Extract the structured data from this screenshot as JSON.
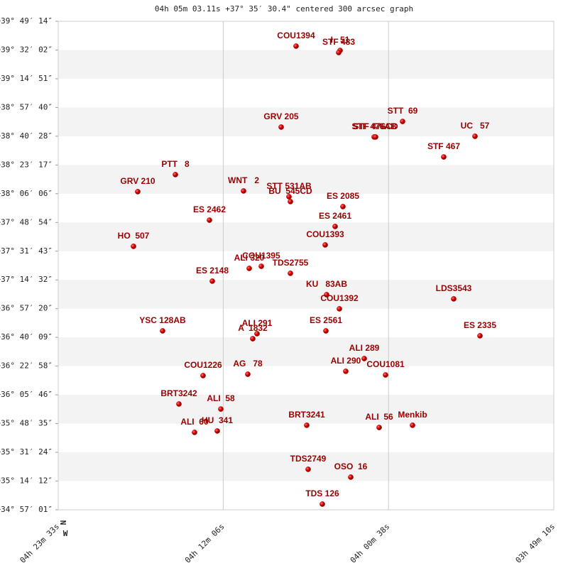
{
  "chart_data": {
    "type": "scatter",
    "title": "04h 05m 03.11s +37° 35′ 30.4\" centered 300 arcsec graph",
    "north_label": "N",
    "west_label": "W",
    "color": "#cc0000",
    "label_color": "#990000",
    "grid": true,
    "xlim": [
      263.55,
      229.1667
    ],
    "xticks": [
      {
        "value": 263.55,
        "label": "04h 23m 33s"
      },
      {
        "value": 252.1,
        "label": "04h 12m 06s"
      },
      {
        "value": 240.6333,
        "label": "04h 00m 38s"
      },
      {
        "value": 229.1667,
        "label": "03h 49m 10s"
      }
    ],
    "ylim": [
      34.95028,
      39.82056
    ],
    "yticks": [
      {
        "value": 39.82056,
        "label": "+39° 49′ 14″"
      },
      {
        "value": 39.53389,
        "label": "+39° 32′ 02″"
      },
      {
        "value": 39.2475,
        "label": "+39° 14′ 51″"
      },
      {
        "value": 38.96111,
        "label": "+38° 57′ 40″"
      },
      {
        "value": 38.67444,
        "label": "+38° 40′ 28″"
      },
      {
        "value": 38.38806,
        "label": "+38° 23′ 17″"
      },
      {
        "value": 38.10167,
        "label": "+38° 06′ 06″"
      },
      {
        "value": 37.815,
        "label": "+37° 48′ 54″"
      },
      {
        "value": 37.52861,
        "label": "+37° 31′ 43″"
      },
      {
        "value": 37.24222,
        "label": "+37° 14′ 32″"
      },
      {
        "value": 36.95556,
        "label": "+36° 57′ 20″"
      },
      {
        "value": 36.66917,
        "label": "+36° 40′ 09″"
      },
      {
        "value": 36.38278,
        "label": "+36° 22′ 58″"
      },
      {
        "value": 36.09611,
        "label": "+36° 05′ 46″"
      },
      {
        "value": 35.80972,
        "label": "+35° 48′ 35″"
      },
      {
        "value": 35.52333,
        "label": "+35° 31′ 24″"
      },
      {
        "value": 35.23667,
        "label": "+35° 14′ 12″"
      },
      {
        "value": 34.95028,
        "label": "+34° 57′ 01″"
      }
    ],
    "labels": [
      "COU1394",
      "I   51",
      "STF 483",
      "GRV 205",
      "STT  69",
      "STF 476AB",
      "STF 476CD",
      "UC   57",
      "STF 467",
      "PTT   8",
      "GRV 210",
      "WNT   2",
      "STT 531AB",
      "BU  545CD",
      "ES 2085",
      "ES 2462",
      "ES 2461",
      "COU1393",
      "HO  507",
      "ALI 320",
      "COU1395",
      "TDS2755",
      "ES 2148",
      "KU   83AB",
      "COU1392",
      "LDS3543",
      "YSC 128AB",
      "ALI 291",
      "A  1832",
      "ES 2561",
      "ES 2335",
      "ALI 289",
      "ALI 290",
      "COU1081",
      "COU1226",
      "AG   78",
      "BRT3242",
      "ALI  58",
      "BRT3241",
      "ALI  56",
      "Menkib",
      "ALI  60",
      "HU  341",
      "TDS2749",
      "OSO  16",
      "TDS 126"
    ],
    "x": [
      247.048,
      243.994,
      244.092,
      248.082,
      239.659,
      241.629,
      241.531,
      234.634,
      236.802,
      255.422,
      258.033,
      250.693,
      247.54,
      247.442,
      243.797,
      253.058,
      244.339,
      245.028,
      258.328,
      250.299,
      249.462,
      247.442,
      252.861,
      244.93,
      244.043,
      236.112,
      256.309,
      249.757,
      250.053,
      244.979,
      234.29,
      242.319,
      243.6,
      240.841,
      253.501,
      250.398,
      255.176,
      252.269,
      246.309,
      241.284,
      238.969,
      254.092,
      252.516,
      246.21,
      243.255,
      245.225
    ],
    "values": [
      39.573,
      39.53,
      39.509,
      38.766,
      38.822,
      38.667,
      38.667,
      38.674,
      38.468,
      38.292,
      38.122,
      38.129,
      38.072,
      38.023,
      37.973,
      37.838,
      37.775,
      37.591,
      37.577,
      37.357,
      37.378,
      37.308,
      37.23,
      37.095,
      36.954,
      37.053,
      36.734,
      36.706,
      36.656,
      36.734,
      36.685,
      36.458,
      36.331,
      36.295,
      36.288,
      36.302,
      36.005,
      35.955,
      35.793,
      35.771,
      35.793,
      35.722,
      35.736,
      35.354,
      35.276,
      35.007
    ]
  }
}
